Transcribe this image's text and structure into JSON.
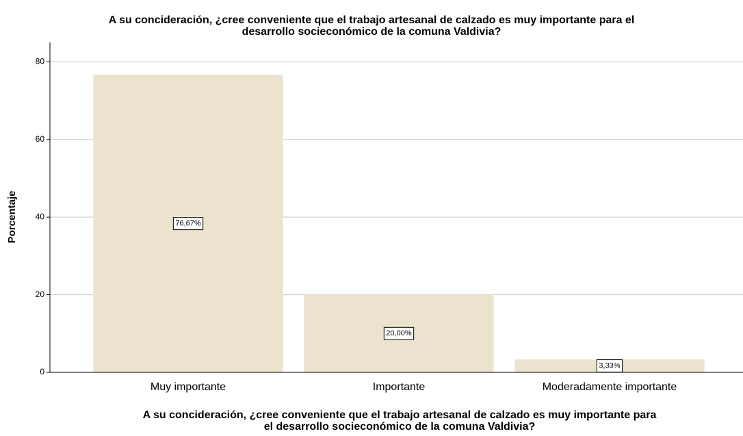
{
  "chart_data": {
    "type": "bar",
    "title": [
      "A su concideración, ¿cree conveniente que el trabajo artesanal de calzado es muy importante para el",
      "desarrollo socieconómico de la comuna Valdivia?"
    ],
    "x_label": [
      "A su concideración, ¿cree conveniente que el trabajo artesanal de calzado es muy importante para",
      "el desarrollo socieconómico de la comuna Valdivia?"
    ],
    "y_label": "Porcentaje",
    "categories": [
      "Muy importante",
      "Importante",
      "Moderadamente importante"
    ],
    "values": [
      76.67,
      20.0,
      3.33
    ],
    "value_labels": [
      "76,67%",
      "20,00%",
      "3,33%"
    ],
    "color": "#ebe3cd",
    "ylim": [
      0,
      85
    ],
    "yticks": [
      0,
      20,
      40,
      60,
      80
    ],
    "grid": true
  }
}
